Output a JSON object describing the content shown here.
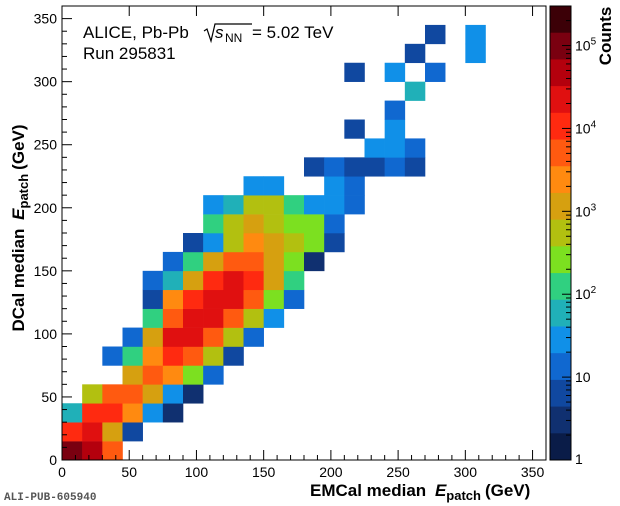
{
  "chart_data": {
    "type": "heatmap",
    "title": "",
    "annotations": {
      "collab": "ALICE, Pb-Pb",
      "sqrt_s": "s",
      "sqrt_s_sub": "NN",
      "energy": "= 5.02 TeV",
      "run": "Run 295831"
    },
    "xlabel": {
      "main": "EMCal median",
      "var": "E",
      "sub": "patch",
      "unit": "(GeV)"
    },
    "ylabel": {
      "main": "DCal median",
      "var": "E",
      "sub": "patch",
      "unit": "(GeV)"
    },
    "zlabel": "Counts",
    "xlim": [
      0,
      360
    ],
    "ylim": [
      0,
      360
    ],
    "zlim": [
      1,
      300000
    ],
    "zscale": "log",
    "bin_width": 15,
    "x_ticks": [
      0,
      50,
      100,
      150,
      200,
      250,
      300,
      350
    ],
    "y_ticks": [
      0,
      50,
      100,
      150,
      200,
      250,
      300,
      350
    ],
    "z_ticks": [
      {
        "value": 10,
        "label": "10"
      },
      {
        "value": 100,
        "label": "10",
        "exp": "2"
      },
      {
        "value": 1000,
        "label": "10",
        "exp": "3"
      },
      {
        "value": 10000,
        "label": "10",
        "exp": "4"
      },
      {
        "value": 100000,
        "label": "10",
        "exp": "5"
      }
    ],
    "z_tick_one": "1",
    "grid": false,
    "bins": [
      [
        0,
        0,
        200000
      ],
      [
        15,
        0,
        60000
      ],
      [
        30,
        0,
        5000
      ],
      [
        0,
        15,
        15000
      ],
      [
        15,
        15,
        30000
      ],
      [
        30,
        15,
        1500
      ],
      [
        45,
        15,
        5
      ],
      [
        0,
        30,
        50
      ],
      [
        15,
        30,
        15000
      ],
      [
        30,
        30,
        12000
      ],
      [
        45,
        30,
        2000
      ],
      [
        60,
        30,
        20
      ],
      [
        75,
        30,
        3
      ],
      [
        15,
        45,
        700
      ],
      [
        30,
        45,
        8000
      ],
      [
        45,
        45,
        7000
      ],
      [
        60,
        45,
        1500
      ],
      [
        75,
        45,
        30
      ],
      [
        90,
        45,
        3
      ],
      [
        45,
        60,
        1000
      ],
      [
        60,
        60,
        5000
      ],
      [
        75,
        60,
        3000
      ],
      [
        90,
        60,
        300
      ],
      [
        105,
        60,
        10
      ],
      [
        30,
        75,
        10
      ],
      [
        45,
        75,
        150
      ],
      [
        60,
        75,
        2000
      ],
      [
        75,
        75,
        15000
      ],
      [
        90,
        75,
        4000
      ],
      [
        105,
        75,
        400
      ],
      [
        120,
        75,
        5
      ],
      [
        45,
        90,
        15
      ],
      [
        60,
        90,
        1000
      ],
      [
        75,
        90,
        20000
      ],
      [
        90,
        90,
        25000
      ],
      [
        105,
        90,
        5000
      ],
      [
        120,
        90,
        500
      ],
      [
        135,
        90,
        10
      ],
      [
        60,
        105,
        150
      ],
      [
        75,
        105,
        8000
      ],
      [
        90,
        105,
        30000
      ],
      [
        105,
        105,
        40000
      ],
      [
        120,
        105,
        8000
      ],
      [
        135,
        105,
        400
      ],
      [
        150,
        105,
        30
      ],
      [
        60,
        120,
        5
      ],
      [
        75,
        120,
        3000
      ],
      [
        90,
        120,
        12000
      ],
      [
        105,
        120,
        40000
      ],
      [
        120,
        120,
        30000
      ],
      [
        135,
        120,
        5000
      ],
      [
        150,
        120,
        300
      ],
      [
        165,
        120,
        8
      ],
      [
        60,
        135,
        15
      ],
      [
        75,
        135,
        50
      ],
      [
        90,
        135,
        1000
      ],
      [
        105,
        135,
        12000
      ],
      [
        120,
        135,
        25000
      ],
      [
        135,
        135,
        12000
      ],
      [
        150,
        135,
        1500
      ],
      [
        165,
        135,
        100
      ],
      [
        75,
        150,
        10
      ],
      [
        90,
        150,
        150
      ],
      [
        105,
        150,
        1500
      ],
      [
        120,
        150,
        4000
      ],
      [
        135,
        150,
        4000
      ],
      [
        150,
        150,
        1500
      ],
      [
        165,
        150,
        300
      ],
      [
        180,
        150,
        3
      ],
      [
        90,
        165,
        5
      ],
      [
        105,
        165,
        30
      ],
      [
        120,
        165,
        800
      ],
      [
        135,
        165,
        3000
      ],
      [
        150,
        165,
        1500
      ],
      [
        165,
        165,
        800
      ],
      [
        180,
        165,
        200
      ],
      [
        195,
        165,
        4
      ],
      [
        105,
        180,
        150
      ],
      [
        120,
        180,
        500
      ],
      [
        135,
        180,
        1500
      ],
      [
        150,
        180,
        800
      ],
      [
        165,
        180,
        300
      ],
      [
        180,
        180,
        200
      ],
      [
        195,
        180,
        15
      ],
      [
        105,
        195,
        30
      ],
      [
        120,
        195,
        40
      ],
      [
        135,
        195,
        500
      ],
      [
        150,
        195,
        500
      ],
      [
        165,
        195,
        100
      ],
      [
        180,
        195,
        20
      ],
      [
        195,
        195,
        30
      ],
      [
        210,
        195,
        10
      ],
      [
        135,
        210,
        30
      ],
      [
        150,
        210,
        20
      ],
      [
        195,
        210,
        20
      ],
      [
        210,
        210,
        10
      ],
      [
        180,
        225,
        4
      ],
      [
        195,
        225,
        10
      ],
      [
        210,
        225,
        4
      ],
      [
        225,
        225,
        4
      ],
      [
        240,
        225,
        8
      ],
      [
        255,
        225,
        4
      ],
      [
        225,
        240,
        20
      ],
      [
        240,
        240,
        30
      ],
      [
        255,
        240,
        10
      ],
      [
        210,
        255,
        5
      ],
      [
        240,
        255,
        30
      ],
      [
        240,
        270,
        10
      ],
      [
        255,
        285,
        40
      ],
      [
        210,
        300,
        4
      ],
      [
        240,
        300,
        20
      ],
      [
        270,
        300,
        8
      ],
      [
        255,
        315,
        5
      ],
      [
        300,
        315,
        20
      ],
      [
        300,
        330,
        20
      ],
      [
        270,
        330,
        5
      ]
    ]
  },
  "footer": {
    "pub_id": "ALI-PUB-605940"
  },
  "colors": {
    "palette": [
      "#3c0007",
      "#7a0010",
      "#b4000d",
      "#e01010",
      "#ff2a10",
      "#ff5a10",
      "#ff8a10",
      "#d6a010",
      "#b2c010",
      "#7ce020",
      "#30d080",
      "#20b0b8",
      "#1090e8",
      "#1068d0",
      "#1048a0",
      "#103070",
      "#0a1c48"
    ]
  }
}
